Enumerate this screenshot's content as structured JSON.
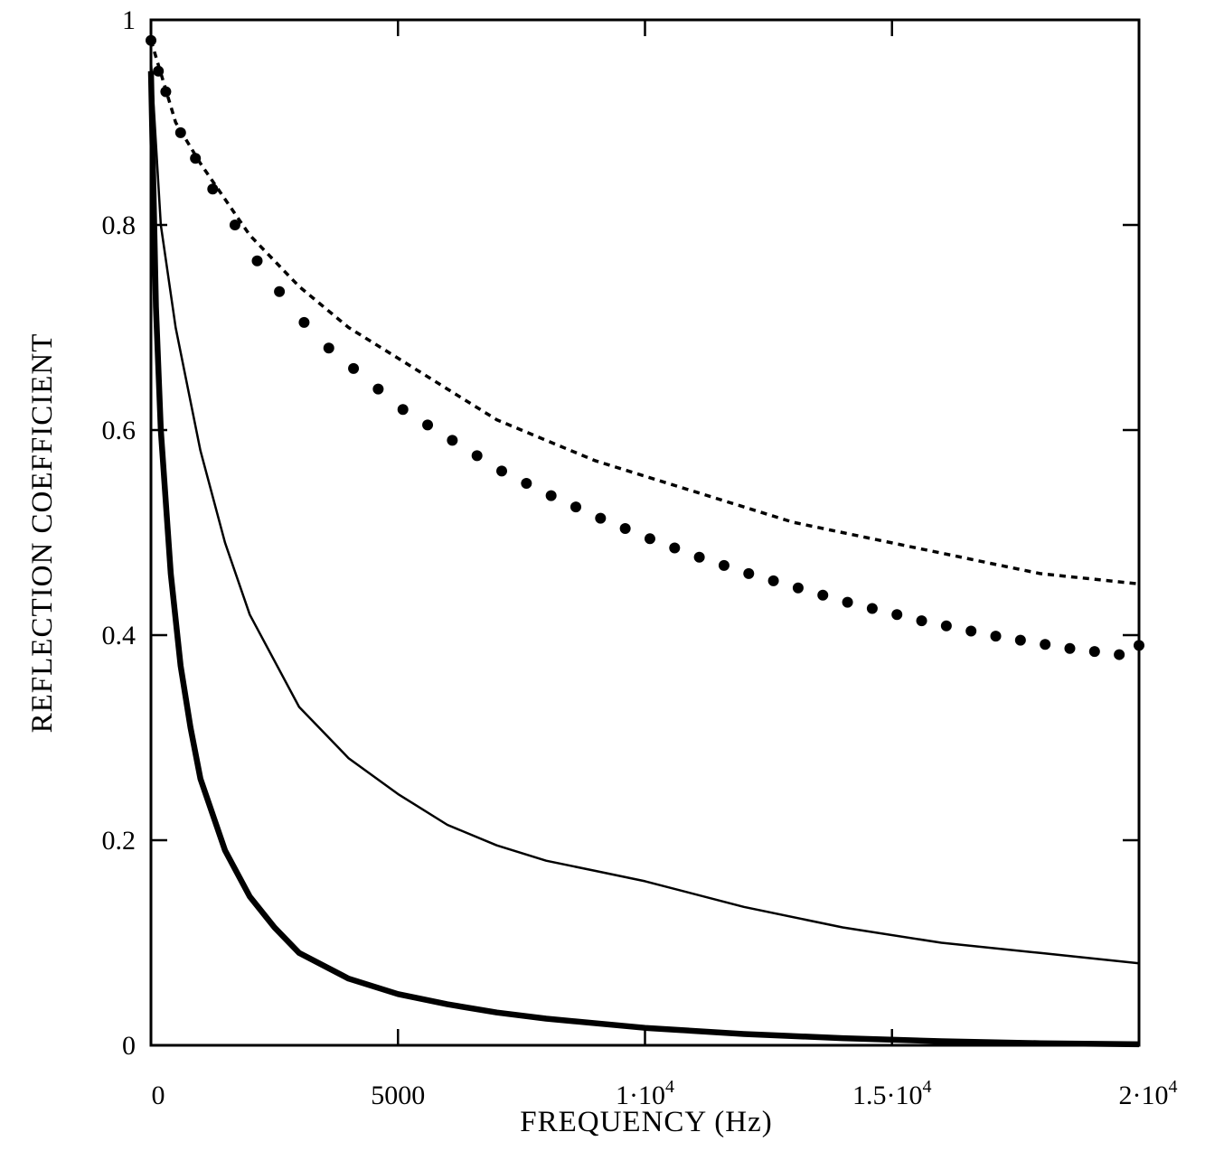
{
  "chart_data": {
    "type": "line",
    "title": "",
    "xlabel": "FREQUENCY  (Hz)",
    "ylabel": "REFLECTION  COEFFICIENT",
    "xlim": [
      0,
      20000
    ],
    "ylim": [
      0,
      1
    ],
    "grid": false,
    "x_ticks": [
      {
        "value": 0,
        "label": "0"
      },
      {
        "value": 5000,
        "label": "5000"
      },
      {
        "value": 10000,
        "label": "1·10",
        "exp": "4"
      },
      {
        "value": 15000,
        "label": "1.5·10",
        "exp": "4"
      },
      {
        "value": 20000,
        "label": "2·10",
        "exp": "4"
      }
    ],
    "y_ticks": [
      {
        "value": 0,
        "label": "0"
      },
      {
        "value": 0.2,
        "label": "0.2"
      },
      {
        "value": 0.4,
        "label": "0.4"
      },
      {
        "value": 0.6,
        "label": "0.6"
      },
      {
        "value": 0.8,
        "label": "0.8"
      },
      {
        "value": 1,
        "label": "1"
      }
    ],
    "series": [
      {
        "name": "dashed",
        "style": "dashed",
        "x": [
          0,
          500,
          1000,
          2000,
          3000,
          4000,
          5000,
          6000,
          7000,
          8000,
          9000,
          10000,
          11000,
          12000,
          13000,
          14000,
          15000,
          16000,
          17000,
          18000,
          19000,
          20000
        ],
        "y": [
          0.98,
          0.9,
          0.86,
          0.79,
          0.74,
          0.7,
          0.67,
          0.64,
          0.61,
          0.59,
          0.57,
          0.555,
          0.54,
          0.525,
          0.51,
          0.5,
          0.49,
          0.48,
          0.47,
          0.46,
          0.455,
          0.45
        ]
      },
      {
        "name": "dotted",
        "style": "dots",
        "x": [
          0,
          150,
          300,
          600,
          900,
          1250,
          1700,
          2150,
          2600,
          3100,
          3600,
          4100,
          4600,
          5100,
          5600,
          6100,
          6600,
          7100,
          7600,
          8100,
          8600,
          9100,
          9600,
          10100,
          10600,
          11100,
          11600,
          12100,
          12600,
          13100,
          13600,
          14100,
          14600,
          15100,
          15600,
          16100,
          16600,
          17100,
          17600,
          18100,
          18600,
          19100,
          19600,
          20000
        ],
        "y": [
          0.98,
          0.95,
          0.93,
          0.89,
          0.865,
          0.835,
          0.8,
          0.765,
          0.735,
          0.705,
          0.68,
          0.66,
          0.64,
          0.62,
          0.605,
          0.59,
          0.575,
          0.56,
          0.548,
          0.536,
          0.525,
          0.514,
          0.504,
          0.494,
          0.485,
          0.476,
          0.468,
          0.46,
          0.453,
          0.446,
          0.439,
          0.432,
          0.426,
          0.42,
          0.414,
          0.409,
          0.404,
          0.399,
          0.395,
          0.391,
          0.387,
          0.384,
          0.381,
          0.39
        ]
      },
      {
        "name": "thin solid",
        "style": "thin",
        "x": [
          0,
          200,
          500,
          1000,
          1500,
          2000,
          3000,
          4000,
          5000,
          6000,
          7000,
          8000,
          9000,
          10000,
          12000,
          14000,
          16000,
          18000,
          20000
        ],
        "y": [
          0.96,
          0.8,
          0.7,
          0.58,
          0.49,
          0.42,
          0.33,
          0.28,
          0.245,
          0.215,
          0.195,
          0.18,
          0.17,
          0.16,
          0.135,
          0.115,
          0.1,
          0.09,
          0.08
        ]
      },
      {
        "name": "thick solid",
        "style": "thick",
        "x": [
          0,
          100,
          200,
          400,
          600,
          800,
          1000,
          1500,
          2000,
          2500,
          3000,
          4000,
          5000,
          6000,
          7000,
          8000,
          10000,
          12000,
          14000,
          16000,
          18000,
          20000
        ],
        "y": [
          0.95,
          0.72,
          0.6,
          0.46,
          0.37,
          0.31,
          0.26,
          0.19,
          0.145,
          0.115,
          0.09,
          0.065,
          0.05,
          0.04,
          0.032,
          0.026,
          0.017,
          0.011,
          0.007,
          0.004,
          0.002,
          0.001
        ]
      }
    ]
  }
}
